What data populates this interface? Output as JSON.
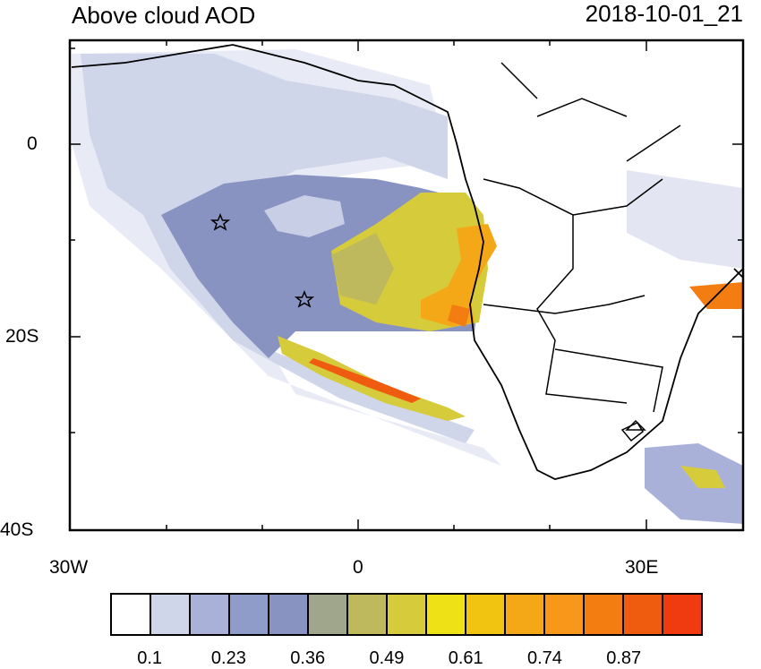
{
  "header": {
    "title": "Above cloud AOD",
    "datetime": "2018-10-01_21"
  },
  "axes": {
    "y_labels": [
      "0",
      "20S",
      "40S"
    ],
    "x_labels": [
      "30W",
      "0",
      "30E"
    ]
  },
  "markers": {
    "stars": [
      {
        "lon": -14.5,
        "lat": -8
      },
      {
        "lon": -5.6,
        "lat": -16
      }
    ]
  },
  "colorbar": {
    "colors": [
      "#ffffff",
      "#d0d6ea",
      "#a9b1d8",
      "#8f9bc9",
      "#8893c2",
      "#9fa68c",
      "#bfb95e",
      "#d5cb3b",
      "#eee216",
      "#f0c411",
      "#f4a818",
      "#f7981a",
      "#f47d12",
      "#ef5c10",
      "#ef3b0f"
    ],
    "labels": [
      "0.1",
      "0.23",
      "0.36",
      "0.49",
      "0.61",
      "0.74",
      "0.87"
    ]
  }
}
